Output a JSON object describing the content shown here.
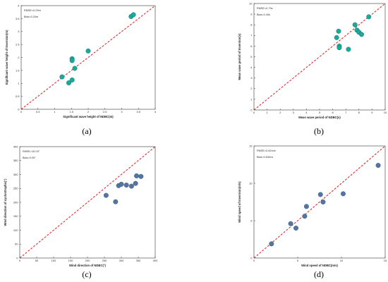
{
  "chart_data": [
    {
      "type": "scatter",
      "panel_label": "(a)",
      "xlabel": "Significant wave height of NDBC(m)",
      "ylabel": "Significant wave height of Inversion(m)",
      "xlim": [
        0,
        4
      ],
      "ylim": [
        0,
        4
      ],
      "x_ticks": [
        "0",
        "0.5",
        "1",
        "1.5",
        "2",
        "2.5",
        "3",
        "3.5",
        "4"
      ],
      "y_ticks": [
        "0",
        "0.5",
        "1",
        "1.5",
        "2",
        "2.5",
        "3",
        "3.5",
        "4"
      ],
      "annotations": [
        "RMSE=0.29m",
        "Bias=0.20m"
      ],
      "reference_line": "y = x",
      "marker_color": "#1aaa9c",
      "line_color": "#e03030",
      "points": [
        {
          "x": 1.22,
          "y": 1.25
        },
        {
          "x": 1.42,
          "y": 1.02
        },
        {
          "x": 1.52,
          "y": 1.13
        },
        {
          "x": 1.52,
          "y": 1.95
        },
        {
          "x": 1.52,
          "y": 1.88
        },
        {
          "x": 1.6,
          "y": 1.58
        },
        {
          "x": 2.0,
          "y": 2.25
        },
        {
          "x": 3.28,
          "y": 3.58
        },
        {
          "x": 3.35,
          "y": 3.65
        }
      ]
    },
    {
      "type": "scatter",
      "panel_label": "(b)",
      "xlabel": "Mean wave period of NDBC(s)",
      "ylabel": "Mean wave period of Inversion(s)",
      "xlim": [
        0,
        10
      ],
      "ylim": [
        0,
        10
      ],
      "x_ticks": [
        "0",
        "1",
        "2",
        "3",
        "4",
        "5",
        "6",
        "7",
        "8",
        "9",
        "10"
      ],
      "y_ticks": [
        "0",
        "1",
        "2",
        "3",
        "4",
        "5",
        "6",
        "7",
        "8",
        "9",
        "10"
      ],
      "annotations": [
        "RMSE=0.79s",
        "Bias=0.49s"
      ],
      "reference_line": "y = x",
      "marker_color": "#1aaa9c",
      "line_color": "#e03030",
      "points": [
        {
          "x": 6.3,
          "y": 6.8
        },
        {
          "x": 6.45,
          "y": 7.4
        },
        {
          "x": 6.5,
          "y": 6.0
        },
        {
          "x": 6.5,
          "y": 5.85
        },
        {
          "x": 7.2,
          "y": 5.7
        },
        {
          "x": 7.7,
          "y": 8.0
        },
        {
          "x": 7.85,
          "y": 7.5
        },
        {
          "x": 8.0,
          "y": 7.3
        },
        {
          "x": 8.2,
          "y": 7.1
        },
        {
          "x": 8.75,
          "y": 8.75
        }
      ]
    },
    {
      "type": "scatter",
      "panel_label": "(c)",
      "xlabel": "Wind direction of NDBC(°)",
      "ylabel": "Wind direction of cyclostrophic(°)",
      "xlim": [
        0,
        400
      ],
      "ylim": [
        0,
        400
      ],
      "x_ticks": [
        "0",
        "50",
        "100",
        "150",
        "200",
        "250",
        "300",
        "350",
        "400"
      ],
      "y_ticks": [
        "0",
        "50",
        "100",
        "150",
        "200",
        "250",
        "300",
        "350",
        "400"
      ],
      "annotations": [
        "RMSE=16.03°",
        "Bias=9.05°"
      ],
      "reference_line": "y = x",
      "marker_color": "#5873a3",
      "line_color": "#e03030",
      "points": [
        {
          "x": 255,
          "y": 225
        },
        {
          "x": 283,
          "y": 202
        },
        {
          "x": 292,
          "y": 260
        },
        {
          "x": 300,
          "y": 265
        },
        {
          "x": 315,
          "y": 262
        },
        {
          "x": 330,
          "y": 258
        },
        {
          "x": 342,
          "y": 268
        },
        {
          "x": 345,
          "y": 295
        },
        {
          "x": 358,
          "y": 293
        }
      ]
    },
    {
      "type": "scatter",
      "panel_label": "(d)",
      "xlabel": "Wind speed of NDBC(m/s)",
      "ylabel": "Wind speed of Inversion(m/s)",
      "xlim": [
        0,
        15
      ],
      "ylim": [
        0,
        15
      ],
      "x_ticks": [
        "0",
        "5",
        "10",
        "15"
      ],
      "y_ticks": [
        "0",
        "5",
        "10",
        "15"
      ],
      "annotations": [
        "RMSE=0.82m/s",
        "Bias=0.63m/s"
      ],
      "reference_line": "y = x",
      "marker_color": "#5873a3",
      "line_color": "#e03030",
      "points": [
        {
          "x": 2.0,
          "y": 1.9
        },
        {
          "x": 4.2,
          "y": 4.6
        },
        {
          "x": 4.8,
          "y": 4.0
        },
        {
          "x": 5.8,
          "y": 5.6
        },
        {
          "x": 6.0,
          "y": 6.9
        },
        {
          "x": 7.6,
          "y": 8.5
        },
        {
          "x": 7.9,
          "y": 7.5
        },
        {
          "x": 10.2,
          "y": 8.6
        },
        {
          "x": 14.2,
          "y": 12.4
        }
      ]
    }
  ]
}
